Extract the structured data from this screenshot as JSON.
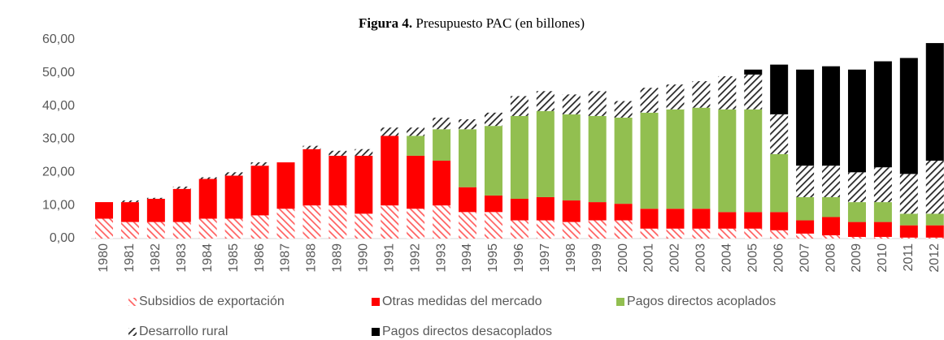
{
  "chart_data": {
    "type": "stacked_bar",
    "title": {
      "label": "Figura 4.",
      "text": "Presupuesto PAC (en billones)"
    },
    "categories": [
      "1980",
      "1981",
      "1982",
      "1983",
      "1984",
      "1985",
      "1986",
      "1987",
      "1988",
      "1989",
      "1990",
      "1991",
      "1992",
      "1993",
      "1994",
      "1995",
      "1996",
      "1997",
      "1998",
      "1999",
      "2000",
      "2001",
      "2002",
      "2003",
      "2004",
      "2005",
      "2006",
      "2007",
      "2008",
      "2009",
      "2010",
      "2011",
      "2012"
    ],
    "series": [
      {
        "name": "Subsidios de exportación",
        "color": "#ff6060",
        "hatch": true,
        "values": [
          6,
          5,
          5,
          5,
          6,
          6,
          7,
          9,
          10,
          10,
          7.5,
          10,
          9,
          10,
          8,
          8,
          5.5,
          5.5,
          5,
          5.5,
          5.5,
          3,
          3,
          3,
          3,
          3,
          2.5,
          1.5,
          1,
          0.5,
          0.5,
          0.3,
          0.3
        ]
      },
      {
        "name": "Otras medidas del mercado",
        "color": "#ff0000",
        "hatch": false,
        "values": [
          5,
          6,
          7,
          10,
          12,
          13,
          15,
          14,
          17,
          15,
          17.5,
          21,
          16,
          13.5,
          7.5,
          5,
          6.5,
          7,
          6.5,
          5.5,
          5,
          6,
          6,
          6,
          5,
          5,
          5.5,
          4,
          5.5,
          4.5,
          4.5,
          3.7,
          3.7
        ]
      },
      {
        "name": "Pagos directos acoplados",
        "color": "#92bf50",
        "hatch": false,
        "values": [
          0,
          0,
          0,
          0,
          0,
          0,
          0,
          0,
          0,
          0,
          0,
          0,
          6,
          9.5,
          17.5,
          21,
          25,
          26,
          26,
          26,
          26,
          29,
          30,
          30.5,
          31,
          31,
          17.5,
          7,
          6,
          6,
          6,
          3.5,
          3.5
        ]
      },
      {
        "name": "Desarrollo rural",
        "color": "#262626",
        "hatch": true,
        "values": [
          0,
          0.5,
          0.3,
          0.7,
          0.5,
          1,
          1,
          0,
          1,
          1.5,
          2,
          2.5,
          2.5,
          3.5,
          3,
          4,
          6,
          6,
          6,
          7.5,
          5,
          7.5,
          7.5,
          8,
          10,
          10.5,
          12,
          9.5,
          9.5,
          9,
          10.5,
          12,
          16
        ]
      },
      {
        "name": "Pagos directos desacoplados",
        "color": "#000000",
        "hatch": false,
        "values": [
          0,
          0,
          0,
          0,
          0,
          0,
          0,
          0,
          0,
          0,
          0,
          0,
          0,
          0,
          0,
          0,
          0,
          0,
          0,
          0,
          0,
          0,
          0,
          0,
          0,
          1.5,
          15,
          29,
          30,
          31,
          32,
          35,
          35.5
        ]
      }
    ],
    "ylim": [
      0,
      60
    ],
    "yticks": [
      {
        "value": 0,
        "label": "0,00"
      },
      {
        "value": 10,
        "label": "10,00"
      },
      {
        "value": 20,
        "label": "20,00"
      },
      {
        "value": 30,
        "label": "30,00"
      },
      {
        "value": 40,
        "label": "40,00"
      },
      {
        "value": 50,
        "label": "50,00"
      },
      {
        "value": 60,
        "label": "60,00"
      }
    ],
    "grid": false
  }
}
